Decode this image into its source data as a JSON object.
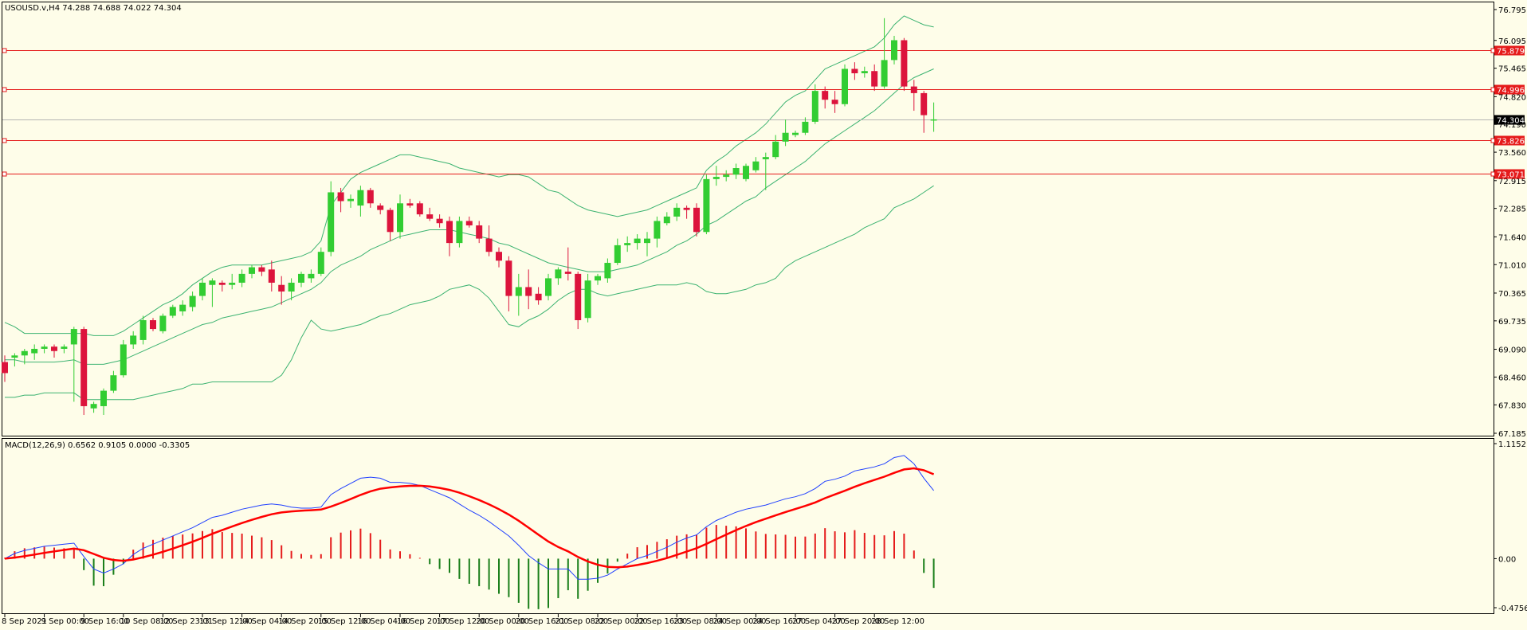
{
  "header": {
    "symbol_line": "USOUSD.v,H4  74.288 74.688 74.022 74.304",
    "macd_line": "MACD(12,26,9) 0.6562 0.9105 0.0000 -0.3305"
  },
  "colors": {
    "background": "#fefde9",
    "bull": "#32cd32",
    "bear": "#dc143c",
    "bands": "#3cb371",
    "level": "#e51b1b",
    "macd_line": "#1f3fff",
    "signal_line": "#ff0000",
    "hist_pos": "#e51b1b",
    "hist_neg": "#1a7f1a"
  },
  "chart_data": [
    {
      "type": "candlestick",
      "title": "USOUSD.v,H4",
      "ylim": [
        67.185,
        76.795
      ],
      "y_ticks": [
        "76.795",
        "76.095",
        "75.465",
        "74.820",
        "74.190",
        "73.560",
        "72.915",
        "72.285",
        "71.640",
        "71.010",
        "70.365",
        "69.735",
        "69.090",
        "68.460",
        "67.830",
        "67.185"
      ],
      "x_ticks": [
        "8 Sep 2021",
        "9 Sep 00:00",
        "9 Sep 16:00",
        "10 Sep 08:00",
        "12 Sep 23:01",
        "13 Sep 12:00",
        "14 Sep 04:00",
        "14 Sep 20:00",
        "15 Sep 12:00",
        "16 Sep 04:00",
        "16 Sep 20:00",
        "17 Sep 12:00",
        "20 Sep 00:00",
        "20 Sep 16:00",
        "21 Sep 08:00",
        "22 Sep 00:00",
        "22 Sep 16:00",
        "23 Sep 08:00",
        "24 Sep 00:00",
        "24 Sep 16:00",
        "27 Sep 04:00",
        "27 Sep 20:00",
        "28 Sep 12:00"
      ],
      "current_price": "74.304",
      "levels": [
        {
          "value": 75.879,
          "label": "75.879"
        },
        {
          "value": 74.996,
          "label": "74.996"
        },
        {
          "value": 73.826,
          "label": "73.826"
        },
        {
          "value": 73.071,
          "label": "73.071"
        }
      ],
      "ohlc": [
        [
          68.8,
          68.95,
          68.35,
          68.55
        ],
        [
          68.9,
          69.0,
          68.7,
          68.95
        ],
        [
          68.95,
          69.1,
          68.75,
          69.05
        ],
        [
          69.0,
          69.2,
          68.85,
          69.1
        ],
        [
          69.1,
          69.2,
          69.0,
          69.15
        ],
        [
          69.15,
          69.2,
          68.9,
          69.05
        ],
        [
          69.1,
          69.2,
          69.0,
          69.15
        ],
        [
          69.2,
          69.6,
          67.9,
          69.55
        ],
        [
          69.55,
          69.6,
          67.6,
          67.8
        ],
        [
          67.75,
          67.9,
          67.65,
          67.85
        ],
        [
          67.8,
          68.2,
          67.6,
          68.15
        ],
        [
          68.15,
          68.6,
          68.1,
          68.5
        ],
        [
          68.5,
          69.3,
          68.45,
          69.2
        ],
        [
          69.2,
          69.5,
          69.1,
          69.4
        ],
        [
          69.3,
          69.85,
          69.2,
          69.75
        ],
        [
          69.75,
          69.8,
          69.5,
          69.55
        ],
        [
          69.5,
          69.9,
          69.45,
          69.85
        ],
        [
          69.85,
          70.1,
          69.8,
          70.05
        ],
        [
          69.95,
          70.2,
          69.85,
          70.1
        ],
        [
          70.05,
          70.4,
          69.95,
          70.3
        ],
        [
          70.3,
          70.7,
          70.2,
          70.6
        ],
        [
          70.55,
          70.7,
          70.05,
          70.65
        ],
        [
          70.6,
          70.65,
          70.4,
          70.55
        ],
        [
          70.55,
          70.8,
          70.45,
          70.6
        ],
        [
          70.6,
          70.9,
          70.5,
          70.8
        ],
        [
          70.8,
          71.0,
          70.7,
          70.95
        ],
        [
          70.95,
          71.0,
          70.75,
          70.85
        ],
        [
          70.9,
          71.1,
          70.4,
          70.6
        ],
        [
          70.55,
          70.75,
          70.1,
          70.4
        ],
        [
          70.4,
          70.7,
          70.2,
          70.6
        ],
        [
          70.6,
          70.85,
          70.5,
          70.8
        ],
        [
          70.7,
          70.9,
          70.6,
          70.8
        ],
        [
          70.8,
          71.4,
          70.75,
          71.3
        ],
        [
          71.3,
          72.9,
          71.2,
          72.65
        ],
        [
          72.65,
          72.75,
          72.2,
          72.45
        ],
        [
          72.45,
          72.6,
          72.3,
          72.5
        ],
        [
          72.35,
          72.8,
          72.1,
          72.7
        ],
        [
          72.7,
          72.75,
          72.3,
          72.4
        ],
        [
          72.35,
          72.4,
          72.15,
          72.25
        ],
        [
          72.25,
          72.3,
          71.55,
          71.75
        ],
        [
          71.75,
          72.6,
          71.6,
          72.4
        ],
        [
          72.4,
          72.5,
          72.3,
          72.35
        ],
        [
          72.4,
          72.45,
          72.1,
          72.15
        ],
        [
          72.15,
          72.3,
          72.0,
          72.05
        ],
        [
          72.05,
          72.15,
          71.85,
          71.95
        ],
        [
          72.0,
          72.1,
          71.2,
          71.5
        ],
        [
          71.5,
          72.1,
          71.4,
          72.0
        ],
        [
          72.0,
          72.1,
          71.85,
          71.9
        ],
        [
          71.9,
          72.0,
          71.5,
          71.6
        ],
        [
          71.6,
          71.9,
          71.2,
          71.3
        ],
        [
          71.3,
          71.4,
          70.95,
          71.1
        ],
        [
          71.1,
          71.2,
          69.95,
          70.3
        ],
        [
          70.3,
          70.8,
          69.85,
          70.5
        ],
        [
          70.5,
          70.9,
          70.0,
          70.3
        ],
        [
          70.35,
          70.5,
          70.1,
          70.2
        ],
        [
          70.3,
          70.8,
          70.2,
          70.7
        ],
        [
          70.7,
          70.95,
          70.55,
          70.9
        ],
        [
          70.85,
          71.4,
          70.65,
          70.8
        ],
        [
          70.8,
          70.85,
          69.55,
          69.75
        ],
        [
          69.8,
          70.8,
          69.7,
          70.65
        ],
        [
          70.65,
          70.8,
          70.55,
          70.75
        ],
        [
          70.7,
          71.15,
          70.6,
          71.05
        ],
        [
          71.05,
          71.6,
          71.0,
          71.45
        ],
        [
          71.45,
          71.65,
          71.3,
          71.5
        ],
        [
          71.5,
          71.7,
          71.35,
          71.6
        ],
        [
          71.5,
          71.75,
          71.2,
          71.6
        ],
        [
          71.6,
          72.1,
          71.4,
          72.0
        ],
        [
          71.95,
          72.2,
          71.9,
          72.1
        ],
        [
          72.1,
          72.4,
          72.0,
          72.3
        ],
        [
          72.3,
          72.35,
          72.05,
          72.25
        ],
        [
          72.3,
          72.4,
          71.65,
          71.75
        ],
        [
          71.75,
          73.05,
          71.7,
          72.95
        ],
        [
          72.95,
          73.25,
          72.8,
          73.0
        ],
        [
          73.0,
          73.15,
          72.9,
          73.05
        ],
        [
          73.05,
          73.3,
          72.95,
          73.2
        ],
        [
          72.95,
          73.3,
          72.9,
          73.25
        ],
        [
          73.15,
          73.45,
          73.1,
          73.35
        ],
        [
          73.4,
          73.55,
          72.7,
          73.45
        ],
        [
          73.45,
          73.95,
          73.4,
          73.8
        ],
        [
          73.8,
          74.3,
          73.7,
          74.0
        ],
        [
          73.95,
          74.05,
          73.9,
          74.0
        ],
        [
          74.0,
          74.35,
          73.95,
          74.25
        ],
        [
          74.25,
          75.1,
          74.2,
          74.95
        ],
        [
          74.95,
          75.05,
          74.55,
          74.75
        ],
        [
          74.75,
          74.95,
          74.45,
          74.65
        ],
        [
          74.65,
          75.55,
          74.6,
          75.45
        ],
        [
          75.45,
          75.6,
          75.2,
          75.35
        ],
        [
          75.35,
          75.5,
          75.25,
          75.4
        ],
        [
          75.4,
          75.55,
          74.95,
          75.05
        ],
        [
          75.05,
          76.6,
          75.0,
          75.65
        ],
        [
          75.65,
          76.2,
          75.55,
          76.1
        ],
        [
          76.1,
          76.15,
          74.95,
          75.05
        ],
        [
          75.05,
          75.2,
          74.5,
          74.9
        ],
        [
          74.9,
          74.95,
          74.0,
          74.4
        ],
        [
          74.288,
          74.688,
          74.022,
          74.304
        ]
      ],
      "bb_upper": [
        69.7,
        69.6,
        69.45,
        69.45,
        69.45,
        69.45,
        69.45,
        69.45,
        69.45,
        69.4,
        69.4,
        69.4,
        69.5,
        69.65,
        69.8,
        69.95,
        70.1,
        70.2,
        70.35,
        70.55,
        70.7,
        70.85,
        70.95,
        71.0,
        71.0,
        71.0,
        71.0,
        71.05,
        71.1,
        71.15,
        71.2,
        71.3,
        71.55,
        72.35,
        72.65,
        72.95,
        73.1,
        73.2,
        73.3,
        73.4,
        73.5,
        73.5,
        73.45,
        73.4,
        73.35,
        73.3,
        73.2,
        73.15,
        73.1,
        73.05,
        73.0,
        73.05,
        73.05,
        73.0,
        72.85,
        72.7,
        72.65,
        72.5,
        72.35,
        72.25,
        72.2,
        72.15,
        72.1,
        72.15,
        72.2,
        72.25,
        72.35,
        72.45,
        72.55,
        72.65,
        72.75,
        73.15,
        73.35,
        73.5,
        73.7,
        73.85,
        74.0,
        74.2,
        74.45,
        74.7,
        74.85,
        74.95,
        75.2,
        75.45,
        75.55,
        75.65,
        75.75,
        75.85,
        75.95,
        76.15,
        76.45,
        76.65,
        76.55,
        76.45,
        76.4
      ],
      "bb_mid": [
        68.85,
        68.85,
        68.8,
        68.8,
        68.8,
        68.8,
        68.82,
        68.85,
        68.75,
        68.75,
        68.75,
        68.8,
        68.85,
        68.95,
        69.05,
        69.15,
        69.25,
        69.35,
        69.45,
        69.55,
        69.65,
        69.7,
        69.8,
        69.85,
        69.9,
        69.95,
        70.0,
        70.05,
        70.15,
        70.25,
        70.35,
        70.45,
        70.6,
        70.85,
        71.0,
        71.1,
        71.2,
        71.35,
        71.45,
        71.55,
        71.65,
        71.7,
        71.75,
        71.8,
        71.8,
        71.8,
        71.75,
        71.7,
        71.65,
        71.6,
        71.5,
        71.45,
        71.35,
        71.25,
        71.15,
        71.05,
        71.0,
        70.95,
        70.9,
        70.85,
        70.85,
        70.85,
        70.9,
        70.95,
        71.0,
        71.1,
        71.2,
        71.3,
        71.45,
        71.55,
        71.7,
        71.9,
        72.0,
        72.15,
        72.3,
        72.45,
        72.55,
        72.75,
        72.9,
        73.05,
        73.2,
        73.35,
        73.55,
        73.75,
        73.9,
        74.05,
        74.2,
        74.35,
        74.5,
        74.7,
        74.9,
        75.1,
        75.25,
        75.35,
        75.45
      ],
      "bb_lower": [
        68.0,
        68.0,
        68.05,
        68.05,
        68.1,
        68.1,
        68.1,
        68.1,
        67.95,
        67.95,
        67.95,
        67.95,
        67.95,
        67.95,
        68.0,
        68.05,
        68.1,
        68.15,
        68.2,
        68.3,
        68.3,
        68.35,
        68.35,
        68.35,
        68.35,
        68.35,
        68.35,
        68.35,
        68.5,
        68.85,
        69.35,
        69.75,
        69.55,
        69.5,
        69.55,
        69.6,
        69.65,
        69.75,
        69.85,
        69.9,
        70.0,
        70.1,
        70.15,
        70.2,
        70.3,
        70.45,
        70.5,
        70.55,
        70.45,
        70.25,
        69.95,
        69.65,
        69.6,
        69.75,
        69.85,
        70.0,
        70.2,
        70.35,
        70.45,
        70.45,
        70.35,
        70.3,
        70.35,
        70.4,
        70.45,
        70.5,
        70.55,
        70.55,
        70.55,
        70.6,
        70.55,
        70.4,
        70.35,
        70.35,
        70.4,
        70.45,
        70.55,
        70.6,
        70.7,
        70.95,
        71.1,
        71.2,
        71.3,
        71.4,
        71.5,
        71.6,
        71.7,
        71.85,
        71.95,
        72.05,
        72.3,
        72.4,
        72.5,
        72.65,
        72.8
      ]
    },
    {
      "type": "macd",
      "title": "MACD(12,26,9)",
      "ylim": [
        -0.4756,
        1.1152
      ],
      "y_ticks": [
        "1.1152",
        "0.00",
        "-0.4756"
      ],
      "macd": [
        0.0,
        0.05,
        0.08,
        0.1,
        0.12,
        0.13,
        0.14,
        0.15,
        0.02,
        -0.1,
        -0.14,
        -0.1,
        -0.05,
        0.04,
        0.1,
        0.14,
        0.18,
        0.22,
        0.26,
        0.3,
        0.35,
        0.4,
        0.42,
        0.45,
        0.48,
        0.5,
        0.52,
        0.53,
        0.52,
        0.5,
        0.49,
        0.49,
        0.5,
        0.62,
        0.68,
        0.73,
        0.78,
        0.79,
        0.78,
        0.74,
        0.74,
        0.73,
        0.71,
        0.67,
        0.63,
        0.59,
        0.53,
        0.47,
        0.42,
        0.36,
        0.29,
        0.22,
        0.13,
        0.03,
        -0.04,
        -0.1,
        -0.1,
        -0.1,
        -0.2,
        -0.2,
        -0.19,
        -0.16,
        -0.1,
        -0.05,
        0.0,
        0.03,
        0.07,
        0.11,
        0.16,
        0.2,
        0.23,
        0.31,
        0.37,
        0.41,
        0.45,
        0.48,
        0.5,
        0.52,
        0.55,
        0.58,
        0.6,
        0.63,
        0.68,
        0.75,
        0.77,
        0.8,
        0.85,
        0.87,
        0.89,
        0.92,
        0.98,
        1.0,
        0.92,
        0.78,
        0.66
      ]
    }
  ]
}
